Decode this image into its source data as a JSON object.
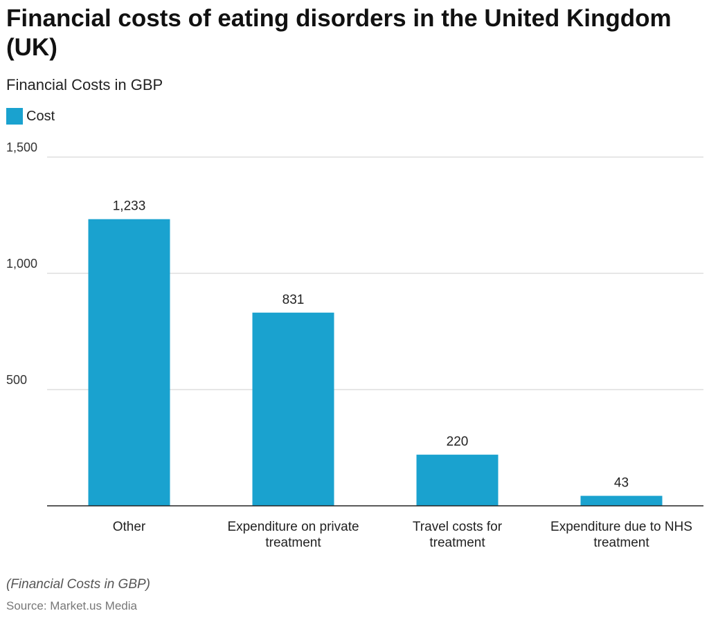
{
  "header": {
    "title": "Financial costs of eating disorders in the United Kingdom (UK)",
    "subtitle": "Financial Costs in GBP"
  },
  "footer": {
    "note": "(Financial Costs in GBP)",
    "source": "Source: Market.us Media"
  },
  "colors": {
    "bar": "#1aa2cf",
    "grid": "#cccccc",
    "axis": "#222222",
    "text": "#333333"
  },
  "chart_data": {
    "type": "bar",
    "title": "Financial costs of eating disorders in the United Kingdom (UK)",
    "subtitle": "Financial Costs in GBP",
    "xlabel": "",
    "ylabel": "",
    "categories": [
      [
        "Other"
      ],
      [
        "Expenditure on private",
        "treatment"
      ],
      [
        "Travel costs for",
        "treatment"
      ],
      [
        "Expenditure due to NHS",
        "treatment"
      ]
    ],
    "series": [
      {
        "name": "Cost",
        "values": [
          1233,
          831,
          220,
          43
        ],
        "labels": [
          "1,233",
          "831",
          "220",
          "43"
        ]
      }
    ],
    "ylim": [
      0,
      1500
    ],
    "yticks": [
      500,
      1000,
      1500
    ],
    "ytick_labels": [
      "500",
      "1,000",
      "1,500"
    ],
    "grid": true,
    "legend": "top-left"
  }
}
